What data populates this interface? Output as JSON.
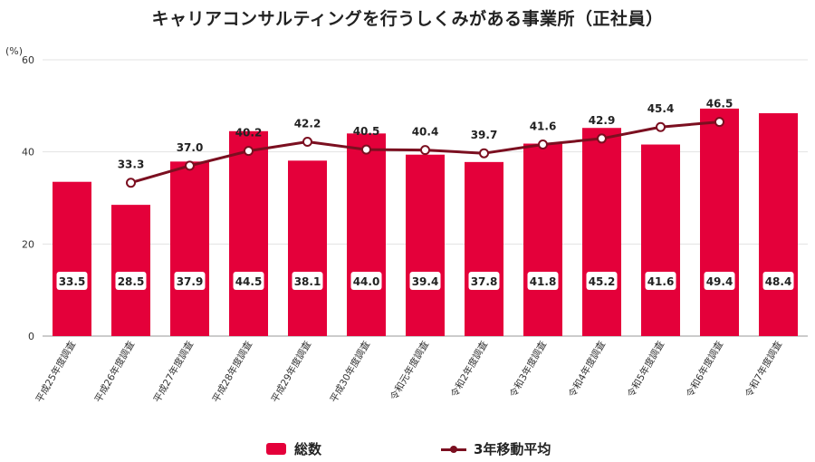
{
  "chart_data": {
    "type": "bar",
    "title": "キャリアコンサルティングを行うしくみがある事業所（正社員）",
    "ylabel": "(%)",
    "ylim": [
      0,
      60
    ],
    "yticks": [
      0,
      20,
      40,
      60
    ],
    "grid": true,
    "legend_position": "bottom",
    "categories": [
      "平成25年度調査",
      "平成26年度調査",
      "平成27年度調査",
      "平成28年度調査",
      "平成29年度調査",
      "平成30年度調査",
      "令和元年度調査",
      "令和2年度調査",
      "令和3年度調査",
      "令和4年度調査",
      "令和5年度調査",
      "令和6年度調査",
      "令和7年度調査"
    ],
    "series": [
      {
        "name": "総数",
        "type": "bar",
        "color": "#e4003a",
        "values": [
          33.5,
          28.5,
          37.9,
          44.5,
          38.1,
          44.0,
          39.4,
          37.8,
          41.8,
          45.2,
          41.6,
          49.4,
          48.4
        ],
        "labels": [
          "33.5",
          "28.5",
          "37.9",
          "44.5",
          "38.1",
          "44.0",
          "39.4",
          "37.8",
          "41.8",
          "45.2",
          "41.6",
          "49.4",
          "48.4"
        ]
      },
      {
        "name": "3年移動平均",
        "type": "line",
        "color": "#7b0f20",
        "values": [
          null,
          33.3,
          37.0,
          40.2,
          42.2,
          40.5,
          40.4,
          39.7,
          41.6,
          42.9,
          45.4,
          46.5,
          null
        ],
        "labels": [
          "",
          "33.3",
          "37.0",
          "40.2",
          "42.2",
          "40.5",
          "40.4",
          "39.7",
          "41.6",
          "42.9",
          "45.4",
          "46.5",
          ""
        ]
      }
    ]
  }
}
